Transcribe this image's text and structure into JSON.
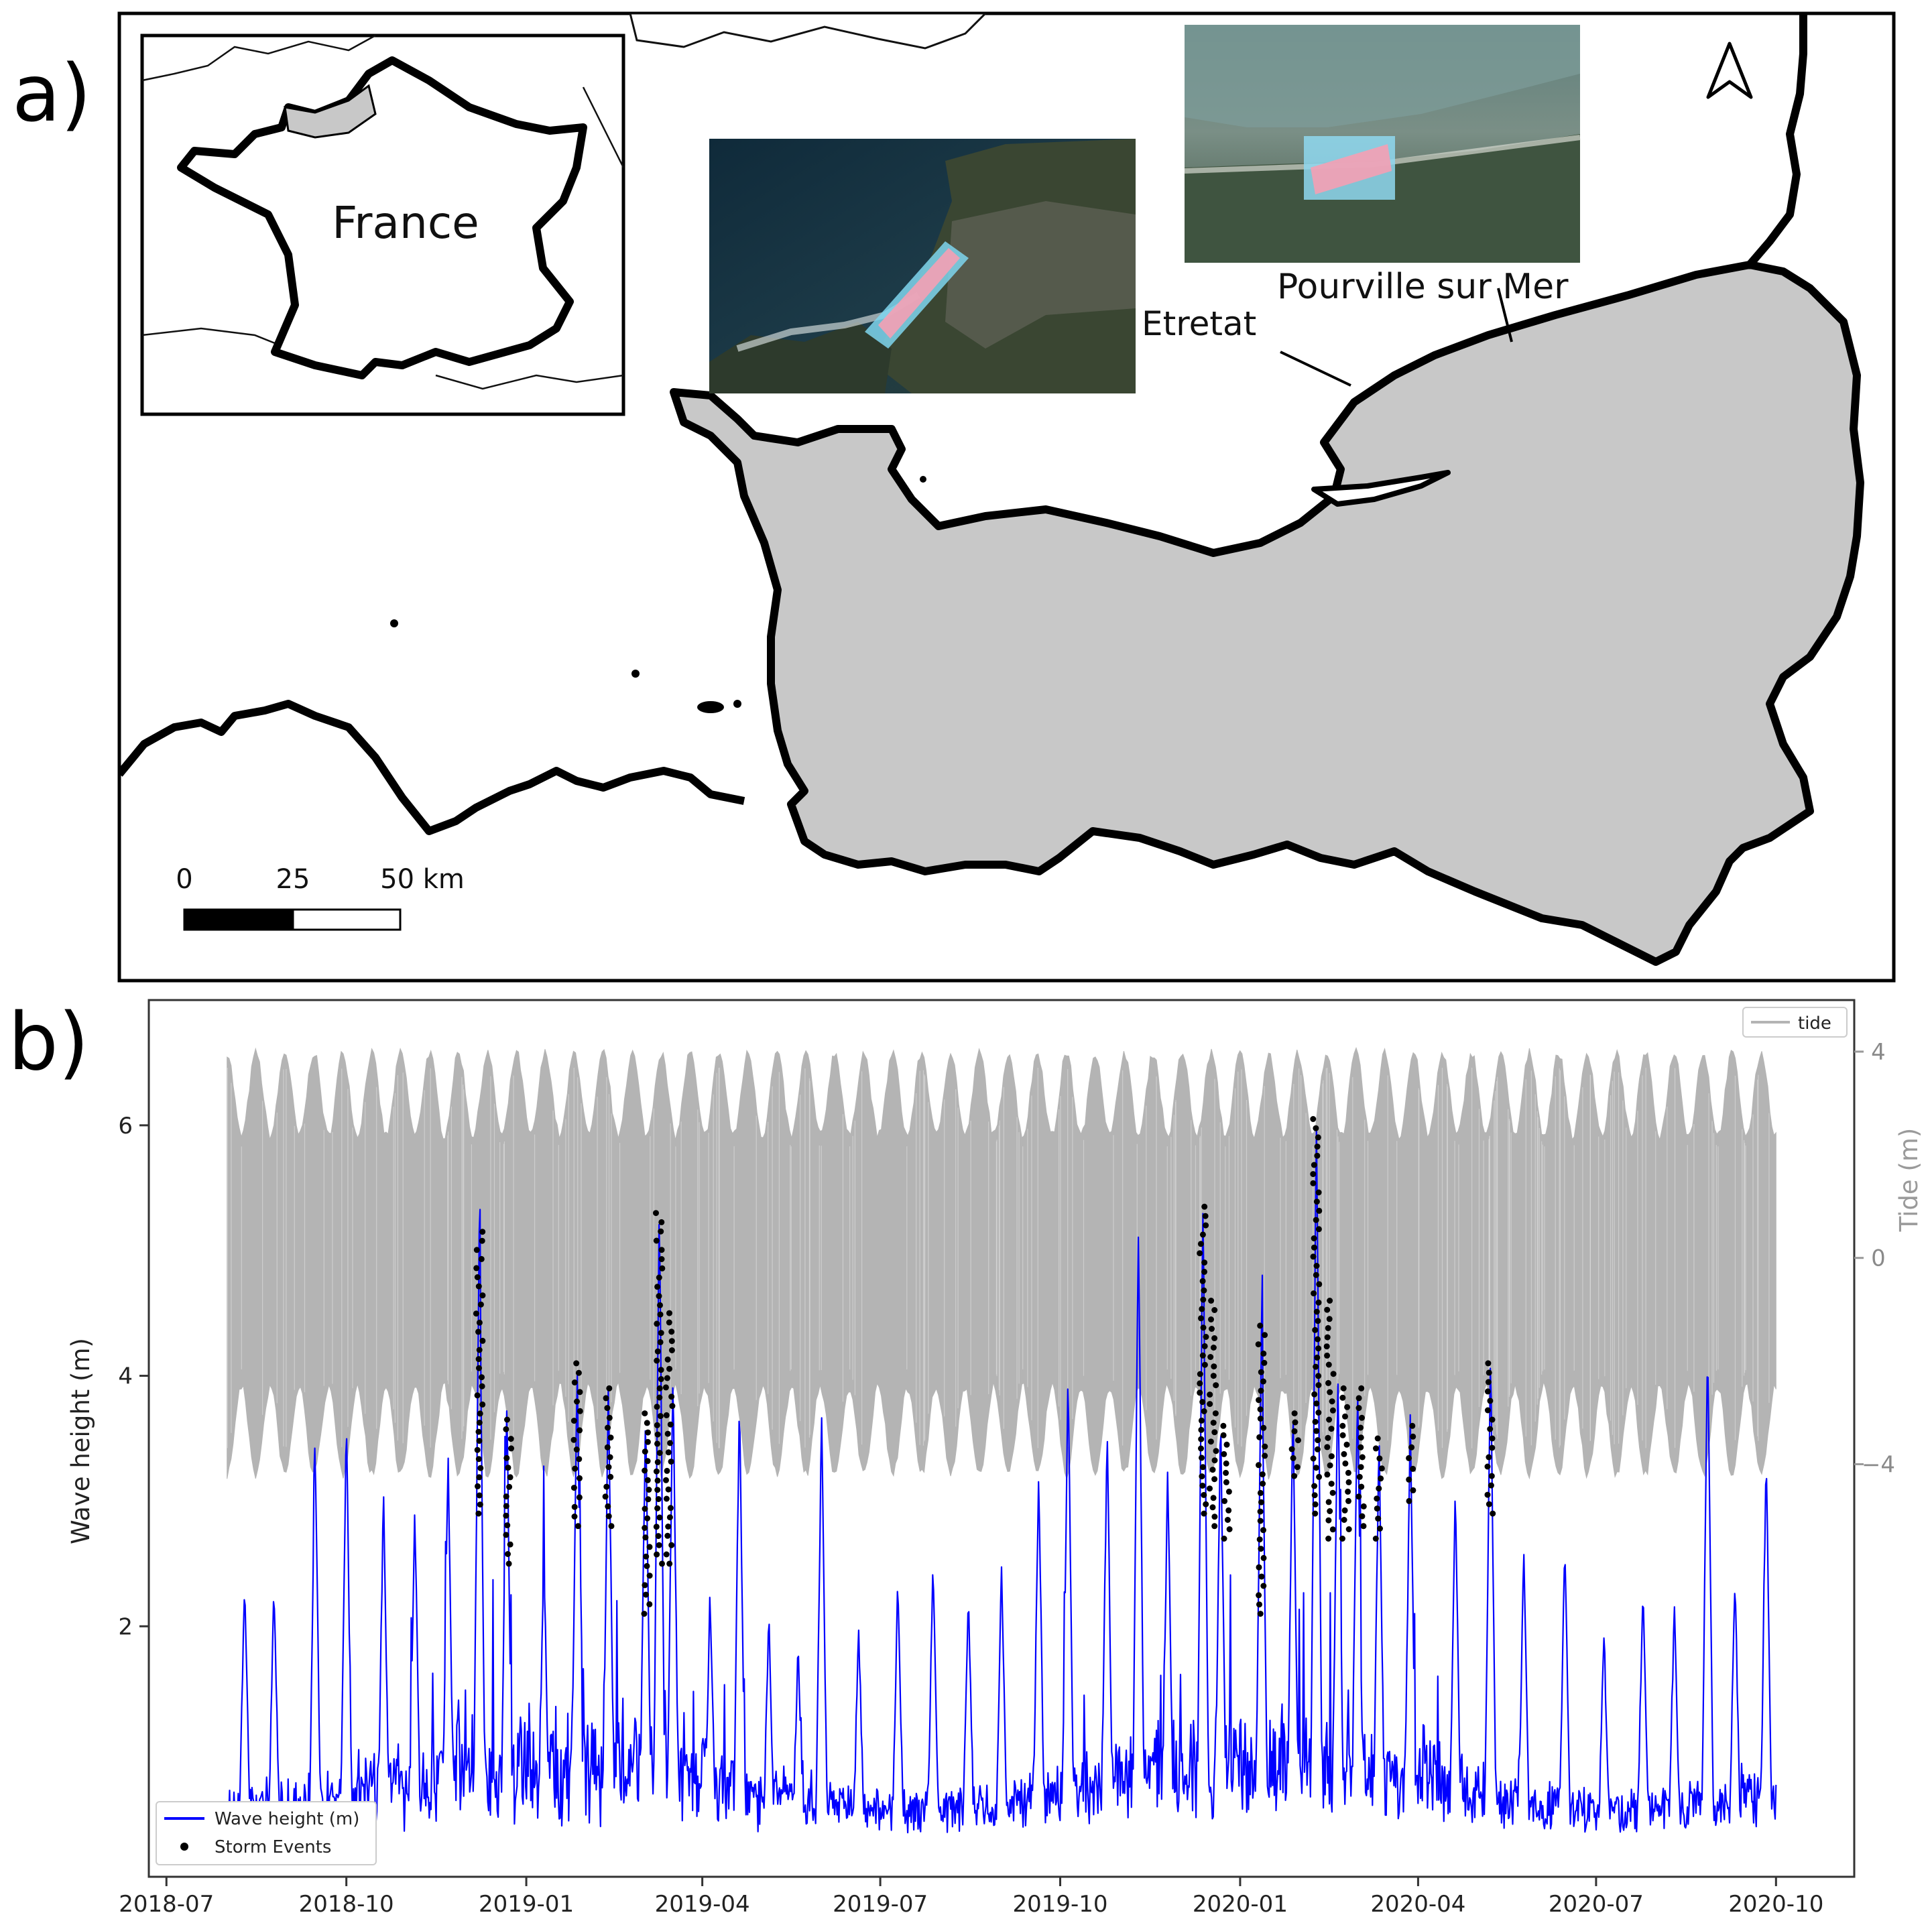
{
  "panel_a": {
    "label": "a)",
    "inset_country_label": "France",
    "place_labels": [
      "Etretat",
      "Pourville sur Mer"
    ],
    "scale_bar": {
      "ticks": [
        "0",
        "25",
        "50 km"
      ]
    },
    "north_arrow_icon": "north-arrow-icon",
    "colors": {
      "land": "#c8c8c8",
      "coast": "#000000",
      "sea": "#ffffff"
    }
  },
  "panel_b": {
    "label": "b)",
    "chart_data": {
      "type": "line",
      "xlabel": "",
      "ylabel": "Wave height (m)",
      "y2label": "Tide (m)",
      "x_ticks": [
        "2018-07",
        "2018-10",
        "2019-01",
        "2019-04",
        "2019-07",
        "2019-10",
        "2020-01",
        "2020-04",
        "2020-07",
        "2020-10"
      ],
      "y_ticks": [
        2,
        4,
        6
      ],
      "y2_ticks": [
        4,
        0,
        -4
      ],
      "xlim": [
        "2018-06-22",
        "2020-11-10"
      ],
      "ylim": [
        0,
        7
      ],
      "y2lim": [
        -12,
        5
      ],
      "legend_top_right": "tide",
      "legend_bottom_left": [
        "Wave height (m)",
        "Storm Events"
      ],
      "series": [
        {
          "name": "tide",
          "kind": "band",
          "color": "#b4b4b4",
          "x_range": [
            "2018-08-01",
            "2020-10-01"
          ],
          "amplitude_min": 2.4,
          "amplitude_max": 4.1,
          "spring_neap_days": 14.8
        },
        {
          "name": "Wave height (m)",
          "kind": "line",
          "color": "#0000ff",
          "peaks": [
            {
              "x": "2018-08-10",
              "y": 2.3
            },
            {
              "x": "2018-08-25",
              "y": 2.25
            },
            {
              "x": "2018-09-15",
              "y": 3.45
            },
            {
              "x": "2018-10-01",
              "y": 3.6
            },
            {
              "x": "2018-10-20",
              "y": 3.0
            },
            {
              "x": "2018-11-05",
              "y": 2.9
            },
            {
              "x": "2018-11-22",
              "y": 3.3
            },
            {
              "x": "2018-12-08",
              "y": 5.15
            },
            {
              "x": "2018-12-22",
              "y": 3.65
            },
            {
              "x": "2019-01-10",
              "y": 2.5
            },
            {
              "x": "2019-01-27",
              "y": 4.1
            },
            {
              "x": "2019-02-12",
              "y": 3.9
            },
            {
              "x": "2019-03-03",
              "y": 3.7
            },
            {
              "x": "2019-03-10",
              "y": 5.3
            },
            {
              "x": "2019-03-17",
              "y": 4.0
            },
            {
              "x": "2019-04-05",
              "y": 2.2
            },
            {
              "x": "2019-04-20",
              "y": 3.8
            },
            {
              "x": "2019-05-05",
              "y": 2.0
            },
            {
              "x": "2019-05-20",
              "y": 1.8
            },
            {
              "x": "2019-06-01",
              "y": 3.6
            },
            {
              "x": "2019-06-20",
              "y": 1.9
            },
            {
              "x": "2019-07-10",
              "y": 2.3
            },
            {
              "x": "2019-07-28",
              "y": 2.45
            },
            {
              "x": "2019-08-15",
              "y": 2.2
            },
            {
              "x": "2019-09-01",
              "y": 2.4
            },
            {
              "x": "2019-09-20",
              "y": 3.2
            },
            {
              "x": "2019-10-05",
              "y": 4.0
            },
            {
              "x": "2019-10-25",
              "y": 3.5
            },
            {
              "x": "2019-11-10",
              "y": 5.15
            },
            {
              "x": "2019-11-25",
              "y": 3.2
            },
            {
              "x": "2019-12-13",
              "y": 5.35
            },
            {
              "x": "2019-12-22",
              "y": 3.6
            },
            {
              "x": "2020-01-12",
              "y": 4.4
            },
            {
              "x": "2020-01-28",
              "y": 3.7
            },
            {
              "x": "2020-02-09",
              "y": 6.05
            },
            {
              "x": "2020-02-20",
              "y": 3.9
            },
            {
              "x": "2020-03-01",
              "y": 3.9
            },
            {
              "x": "2020-03-12",
              "y": 3.5
            },
            {
              "x": "2020-03-28",
              "y": 3.6
            },
            {
              "x": "2020-04-20",
              "y": 3.0
            },
            {
              "x": "2020-05-08",
              "y": 4.1
            },
            {
              "x": "2020-05-25",
              "y": 2.5
            },
            {
              "x": "2020-06-15",
              "y": 2.6
            },
            {
              "x": "2020-07-05",
              "y": 1.9
            },
            {
              "x": "2020-07-25",
              "y": 2.3
            },
            {
              "x": "2020-08-10",
              "y": 2.1
            },
            {
              "x": "2020-08-27",
              "y": 4.25
            },
            {
              "x": "2020-09-10",
              "y": 2.3
            },
            {
              "x": "2020-09-26",
              "y": 3.3
            }
          ]
        },
        {
          "name": "Storm Events",
          "kind": "scatter",
          "color": "#000000",
          "clusters": [
            {
              "x": "2018-12-08",
              "y_min": 2.9,
              "y_max": 5.15
            },
            {
              "x": "2018-12-23",
              "y_min": 2.5,
              "y_max": 3.65
            },
            {
              "x": "2019-01-27",
              "y_min": 2.8,
              "y_max": 4.1
            },
            {
              "x": "2019-02-12",
              "y_min": 2.8,
              "y_max": 3.9
            },
            {
              "x": "2019-03-04",
              "y_min": 2.1,
              "y_max": 3.7
            },
            {
              "x": "2019-03-10",
              "y_min": 2.5,
              "y_max": 5.3
            },
            {
              "x": "2019-03-15",
              "y_min": 2.5,
              "y_max": 4.5
            },
            {
              "x": "2019-12-13",
              "y_min": 2.9,
              "y_max": 5.35
            },
            {
              "x": "2019-12-18",
              "y_min": 2.8,
              "y_max": 4.6
            },
            {
              "x": "2019-12-25",
              "y_min": 2.7,
              "y_max": 3.6
            },
            {
              "x": "2020-01-12",
              "y_min": 2.1,
              "y_max": 4.4
            },
            {
              "x": "2020-01-29",
              "y_min": 3.2,
              "y_max": 3.7
            },
            {
              "x": "2020-02-09",
              "y_min": 2.9,
              "y_max": 6.05
            },
            {
              "x": "2020-02-16",
              "y_min": 2.7,
              "y_max": 4.6
            },
            {
              "x": "2020-02-24",
              "y_min": 2.7,
              "y_max": 3.9
            },
            {
              "x": "2020-03-03",
              "y_min": 2.8,
              "y_max": 3.9
            },
            {
              "x": "2020-03-12",
              "y_min": 2.7,
              "y_max": 3.5
            },
            {
              "x": "2020-03-28",
              "y_min": 3.0,
              "y_max": 3.6
            },
            {
              "x": "2020-05-08",
              "y_min": 2.9,
              "y_max": 4.1
            }
          ]
        }
      ]
    }
  }
}
